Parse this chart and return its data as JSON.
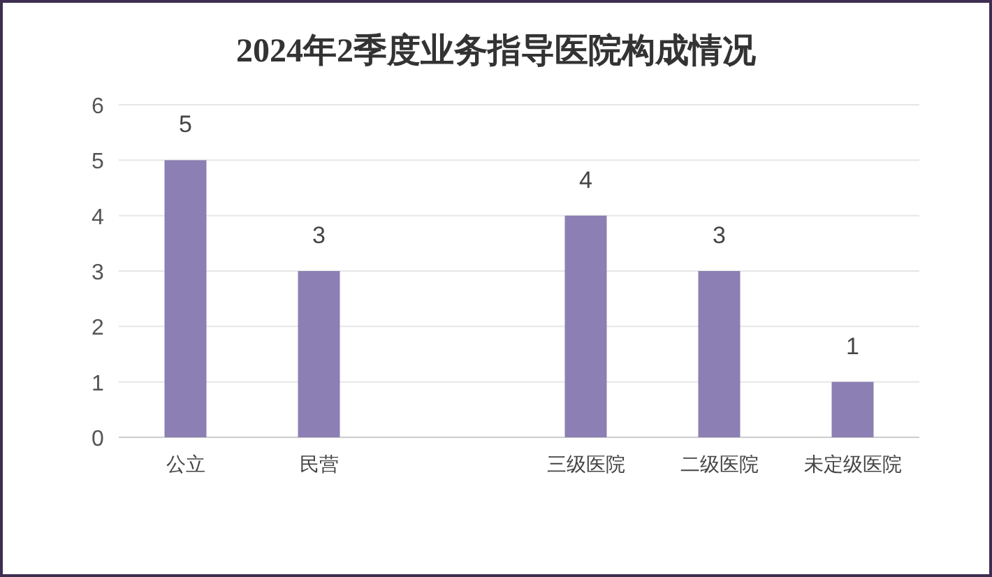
{
  "chart_data": {
    "type": "bar",
    "title": "2024年2季度业务指导医院构成情况",
    "categories": [
      "公立",
      "民营",
      null,
      "三级医院",
      "二级医院",
      "未定级医院"
    ],
    "values": [
      5,
      3,
      null,
      4,
      3,
      1
    ],
    "color": "#8b7fb3",
    "ylim": [
      0,
      6
    ],
    "yticks": [
      0,
      1,
      2,
      3,
      4,
      5,
      6
    ],
    "grid": "y",
    "data_labels": true
  }
}
